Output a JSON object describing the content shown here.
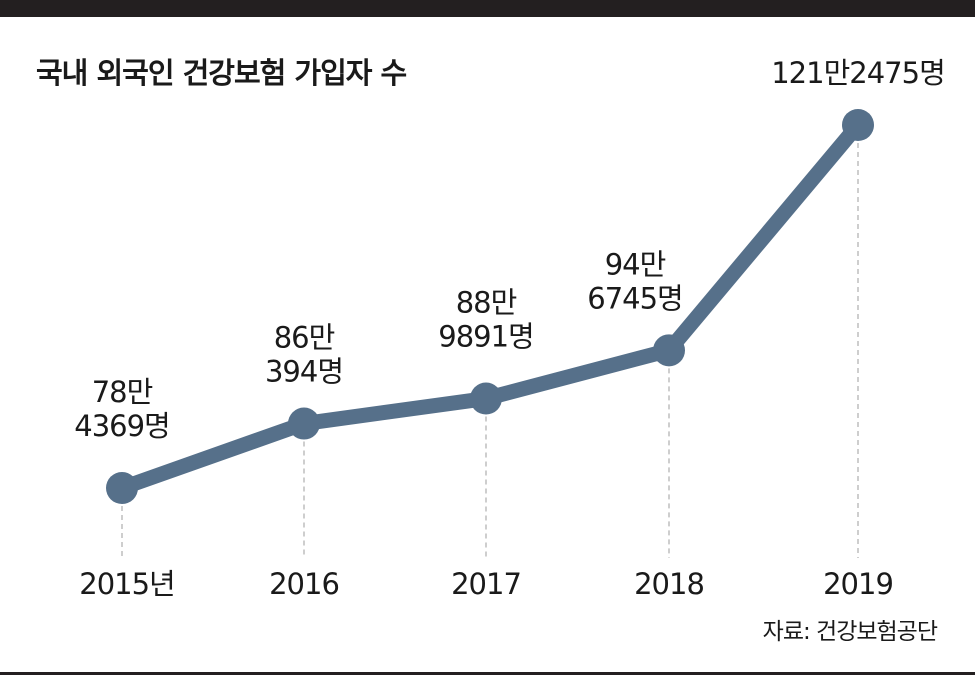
{
  "header": {
    "title": "국내 외국인 건강보험 가입자 수"
  },
  "footer": {
    "source": "자료: 건강보험공단"
  },
  "colors": {
    "line": "#56708a",
    "guide": "#bdbdbd",
    "bar": "#231f20",
    "text": "#1a1a1a"
  },
  "chart_data": {
    "type": "line",
    "categories": [
      "2015년",
      "2016",
      "2017",
      "2018",
      "2019"
    ],
    "values": [
      784369,
      860394,
      889891,
      946745,
      1212475
    ],
    "data_labels": [
      [
        "78만",
        "4369명"
      ],
      [
        "86만",
        "394명"
      ],
      [
        "88만",
        "9891명"
      ],
      [
        "94만",
        "6745명"
      ],
      [
        "121만2475명"
      ]
    ],
    "title": "국내 외국인 건강보험 가입자 수",
    "xlabel": "",
    "ylabel": "",
    "grid": false,
    "legend": "none"
  }
}
